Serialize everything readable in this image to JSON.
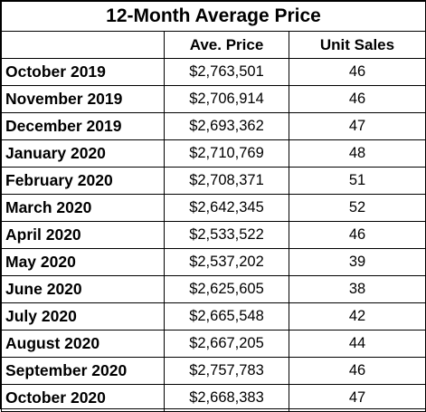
{
  "table": {
    "title": "12-Month Average Price",
    "headers": [
      "",
      "Ave. Price",
      "Unit Sales"
    ],
    "rows": [
      {
        "month": "October 2019",
        "price": "$2,763,501",
        "sales": "46"
      },
      {
        "month": "November 2019",
        "price": "$2,706,914",
        "sales": "46"
      },
      {
        "month": "December 2019",
        "price": "$2,693,362",
        "sales": "47"
      },
      {
        "month": "January 2020",
        "price": "$2,710,769",
        "sales": "48"
      },
      {
        "month": "February 2020",
        "price": "$2,708,371",
        "sales": "51"
      },
      {
        "month": "March 2020",
        "price": "$2,642,345",
        "sales": "52"
      },
      {
        "month": "April 2020",
        "price": "$2,533,522",
        "sales": "46"
      },
      {
        "month": "May 2020",
        "price": "$2,537,202",
        "sales": "39"
      },
      {
        "month": "June 2020",
        "price": "$2,625,605",
        "sales": "38"
      },
      {
        "month": "July 2020",
        "price": "$2,665,548",
        "sales": "42"
      },
      {
        "month": "August 2020",
        "price": "$2,667,205",
        "sales": "44"
      },
      {
        "month": "September 2020",
        "price": "$2,757,783",
        "sales": "46"
      },
      {
        "month": "October 2020",
        "price": "$2,668,383",
        "sales": "47"
      }
    ]
  }
}
